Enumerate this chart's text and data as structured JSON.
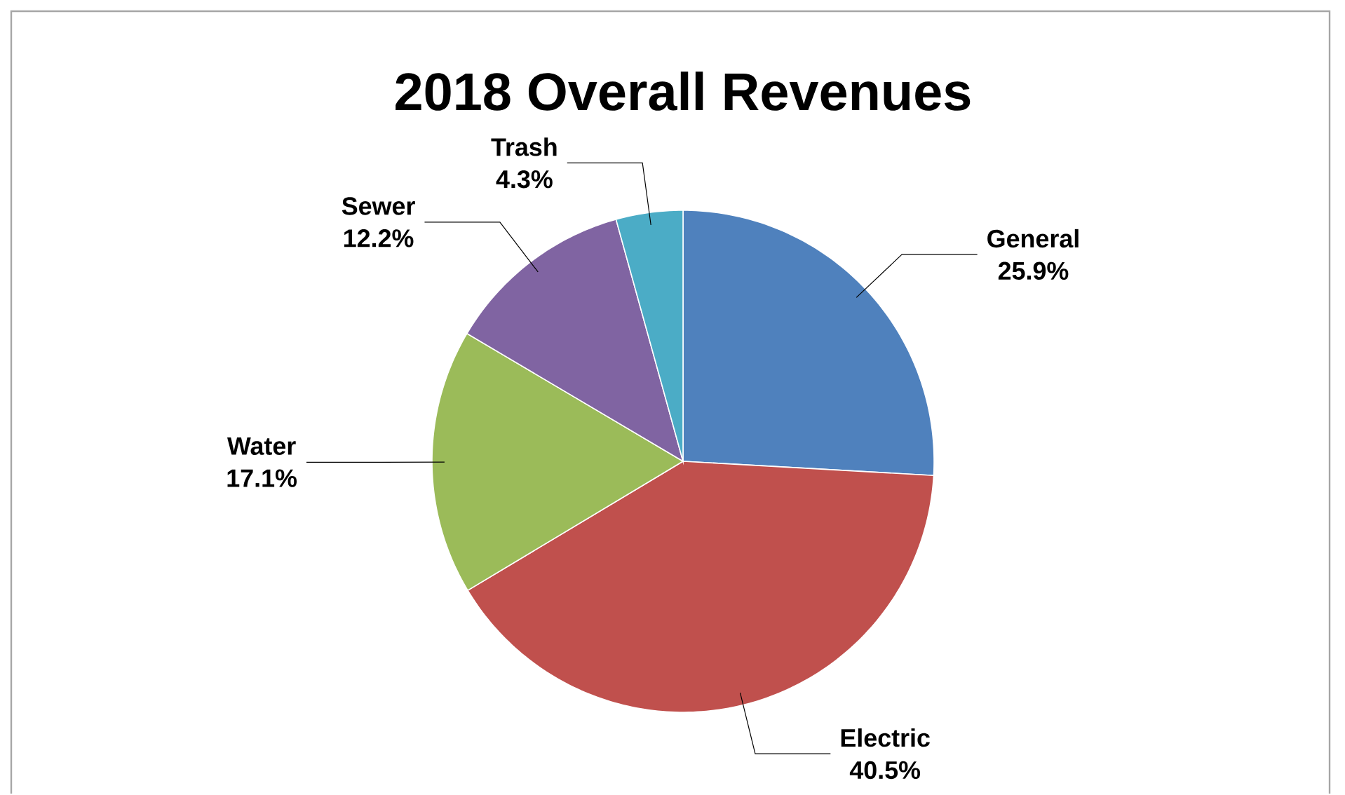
{
  "chart_data": {
    "type": "pie",
    "title": "2018 Overall Revenues",
    "categories": [
      "General",
      "Electric",
      "Water",
      "Sewer",
      "Trash"
    ],
    "values": [
      25.9,
      40.5,
      17.1,
      12.2,
      4.3
    ],
    "colors": [
      "#4f81bd",
      "#c0504d",
      "#9bbb59",
      "#8064a2",
      "#4bacc6"
    ],
    "value_labels": [
      "25.9%",
      "40.5%",
      "17.1%",
      "12.2%",
      "4.3%"
    ]
  }
}
